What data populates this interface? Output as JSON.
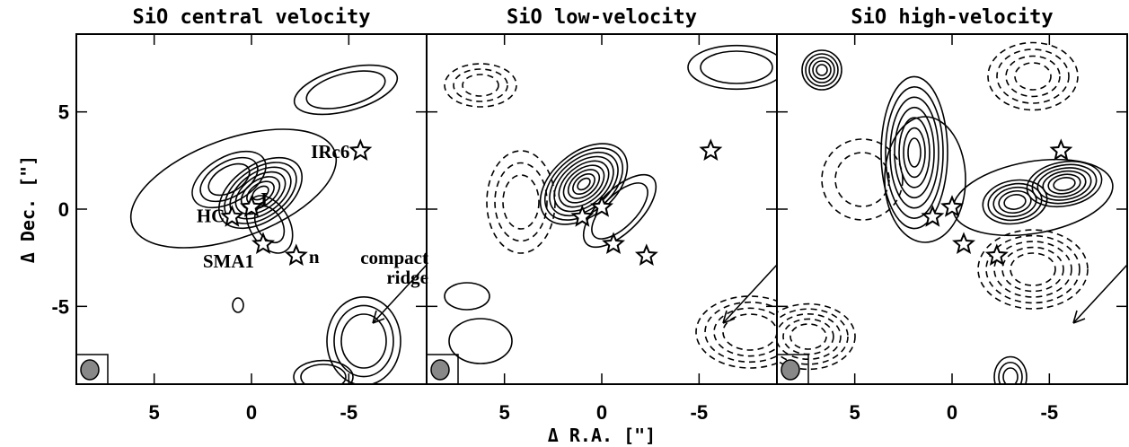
{
  "chart_data": [
    {
      "type": "scatter",
      "title": "SiO central velocity",
      "xlim": [
        9,
        -9
      ],
      "ylim": [
        -9,
        9
      ],
      "xticks": [
        5,
        0,
        -5
      ],
      "yticks": [
        -5,
        0,
        5
      ],
      "ylabel": "Δ Dec. [\"]",
      "x": [
        1.0,
        0,
        -0.6,
        -2.3,
        -5.6
      ],
      "y": [
        -0.4,
        0.1,
        -1.8,
        -2.4,
        3.0
      ],
      "point_labels": [
        "HC",
        "I",
        "SMA1",
        "n",
        "IRc6"
      ],
      "annotation": [
        "compact",
        "ridge"
      ]
    },
    {
      "type": "scatter",
      "title": "SiO low-velocity",
      "xlim": [
        9,
        -9
      ],
      "ylim": [
        -9,
        9
      ],
      "xticks": [
        5,
        0,
        -5
      ],
      "xlabel": "Δ R.A. [\"]",
      "x": [
        1.0,
        0,
        -0.6,
        -2.3,
        -5.6
      ],
      "y": [
        -0.4,
        0.1,
        -1.8,
        -2.4,
        3.0
      ]
    },
    {
      "type": "scatter",
      "title": "SiO high-velocity",
      "xlim": [
        9,
        -9
      ],
      "ylim": [
        -9,
        9
      ],
      "xticks": [
        5,
        0,
        -5
      ],
      "x": [
        1.0,
        0,
        -0.6,
        -2.3,
        -5.6
      ],
      "y": [
        -0.4,
        0.1,
        -1.8,
        -2.4,
        3.0
      ]
    }
  ]
}
